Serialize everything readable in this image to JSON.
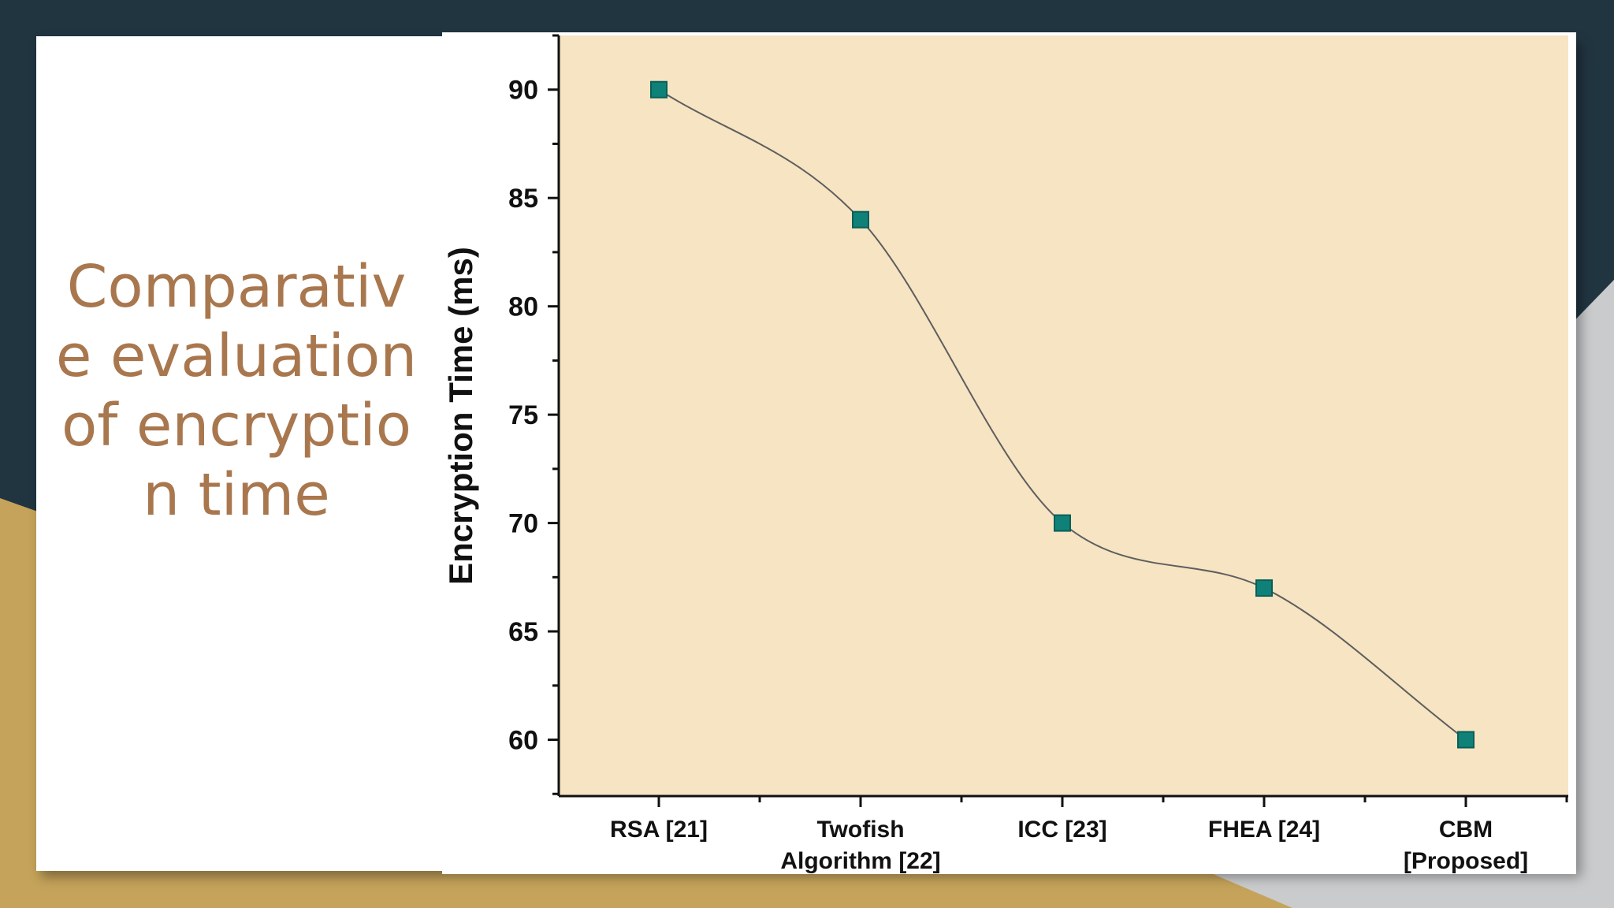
{
  "slide": {
    "title": "Comparative evaluation of encryption time"
  },
  "colors": {
    "page_bg": "#213541",
    "accent_gold": "#c5a35a",
    "accent_gray": "#c9cbcd",
    "title_color": "#a9774e",
    "plot_bg": "#f6e4c2",
    "marker": "#0f8178",
    "line": "#5e5e5e"
  },
  "chart_data": {
    "type": "line",
    "title": "",
    "xlabel": "",
    "ylabel": "Encryption Time (ms)",
    "categories": [
      "RSA [21]",
      "Twofish Algorithm [22]",
      "ICC [23]",
      "FHEA [24]",
      "CBM [Proposed]"
    ],
    "category_lines": [
      [
        "RSA [21]"
      ],
      [
        "Twofish",
        "Algorithm [22]"
      ],
      [
        "ICC [23]"
      ],
      [
        "FHEA [24]"
      ],
      [
        "CBM",
        "[Proposed]"
      ]
    ],
    "series": [
      {
        "values": [
          90,
          84,
          70,
          67,
          60
        ],
        "marker": "square",
        "smooth": true
      }
    ],
    "ylim": [
      57.4,
      92.5
    ],
    "yticks": [
      60,
      65,
      70,
      75,
      80,
      85,
      90
    ],
    "grid": false,
    "legend": "none"
  }
}
